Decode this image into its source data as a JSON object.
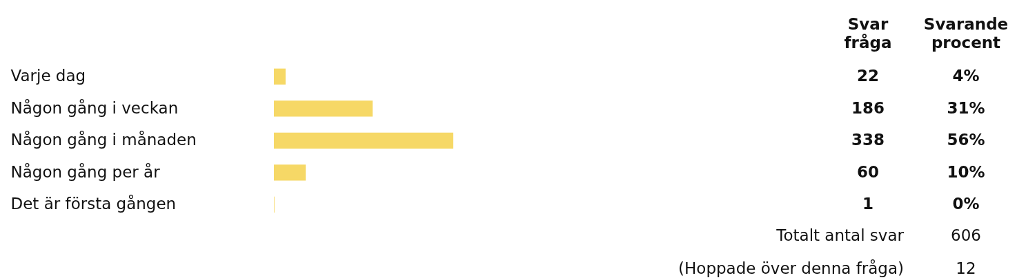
{
  "chart_data": {
    "type": "bar",
    "orientation": "horizontal",
    "categories": [
      "Varje dag",
      "Någon gång i veckan",
      "Någon gång i månaden",
      "Någon gång per år",
      "Det är första gången"
    ],
    "series": [
      {
        "color": "#f6d866",
        "values": [
          22,
          186,
          338,
          60,
          1
        ]
      }
    ],
    "data_labels": true,
    "annotations": [
      "Svar fråga",
      "Svarande procent",
      "4%",
      "31%",
      "56%",
      "10%",
      "0%",
      "Totalt antal svar",
      "606",
      "(Hoppade över denna fråga)",
      "12"
    ]
  }
}
